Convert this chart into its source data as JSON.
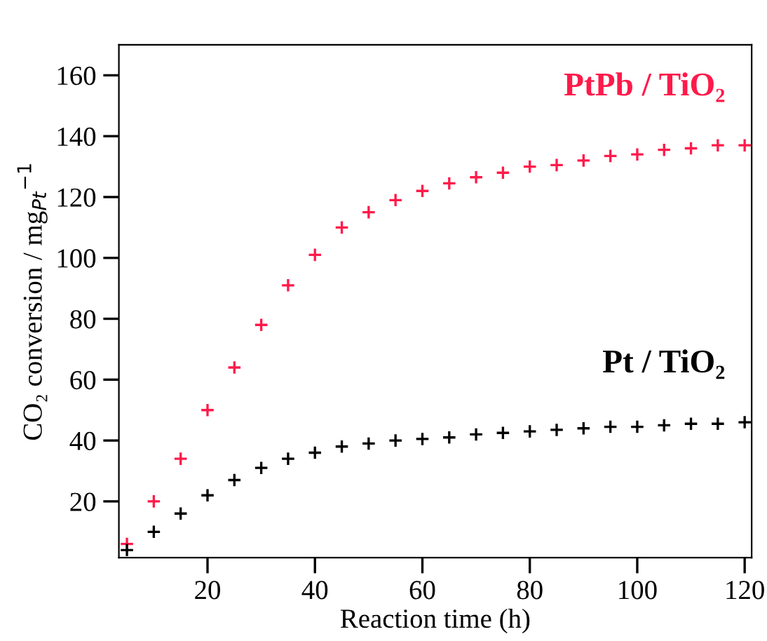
{
  "chart_data": {
    "type": "scatter",
    "xlabel": "Reaction time (h)",
    "ylabel": "CO₂ conversion / mg$_{Pt}$$^{−1}$",
    "marker": "cross",
    "legend": false,
    "grid": false,
    "x": [
      5,
      10,
      15,
      20,
      25,
      30,
      35,
      40,
      45,
      50,
      55,
      60,
      65,
      70,
      75,
      80,
      85,
      90,
      95,
      100,
      105,
      110,
      115,
      120
    ],
    "series": [
      {
        "name": "PtPb / TiO₂",
        "color": "#ff1a4a",
        "values": [
          6,
          20,
          34,
          50,
          64,
          78,
          91,
          101,
          110,
          115,
          119,
          122,
          124.5,
          126.5,
          128,
          130,
          130.5,
          132,
          133.5,
          134,
          135.5,
          136,
          137,
          137
        ]
      },
      {
        "name": "Pt / TiO₂",
        "color": "#000000",
        "values": [
          4,
          10,
          16,
          22,
          27,
          31,
          34,
          36,
          38,
          39,
          40,
          40.5,
          41,
          42,
          42.5,
          43,
          43.5,
          44,
          44.5,
          44.5,
          45,
          45.5,
          45.5,
          46
        ]
      }
    ],
    "xlim": [
      3.5,
      121.3
    ],
    "ylim": [
      1.5,
      170
    ],
    "xticks": [
      20,
      40,
      60,
      80,
      100,
      120
    ],
    "yticks": [
      20,
      40,
      60,
      80,
      100,
      120,
      140,
      160
    ]
  }
}
